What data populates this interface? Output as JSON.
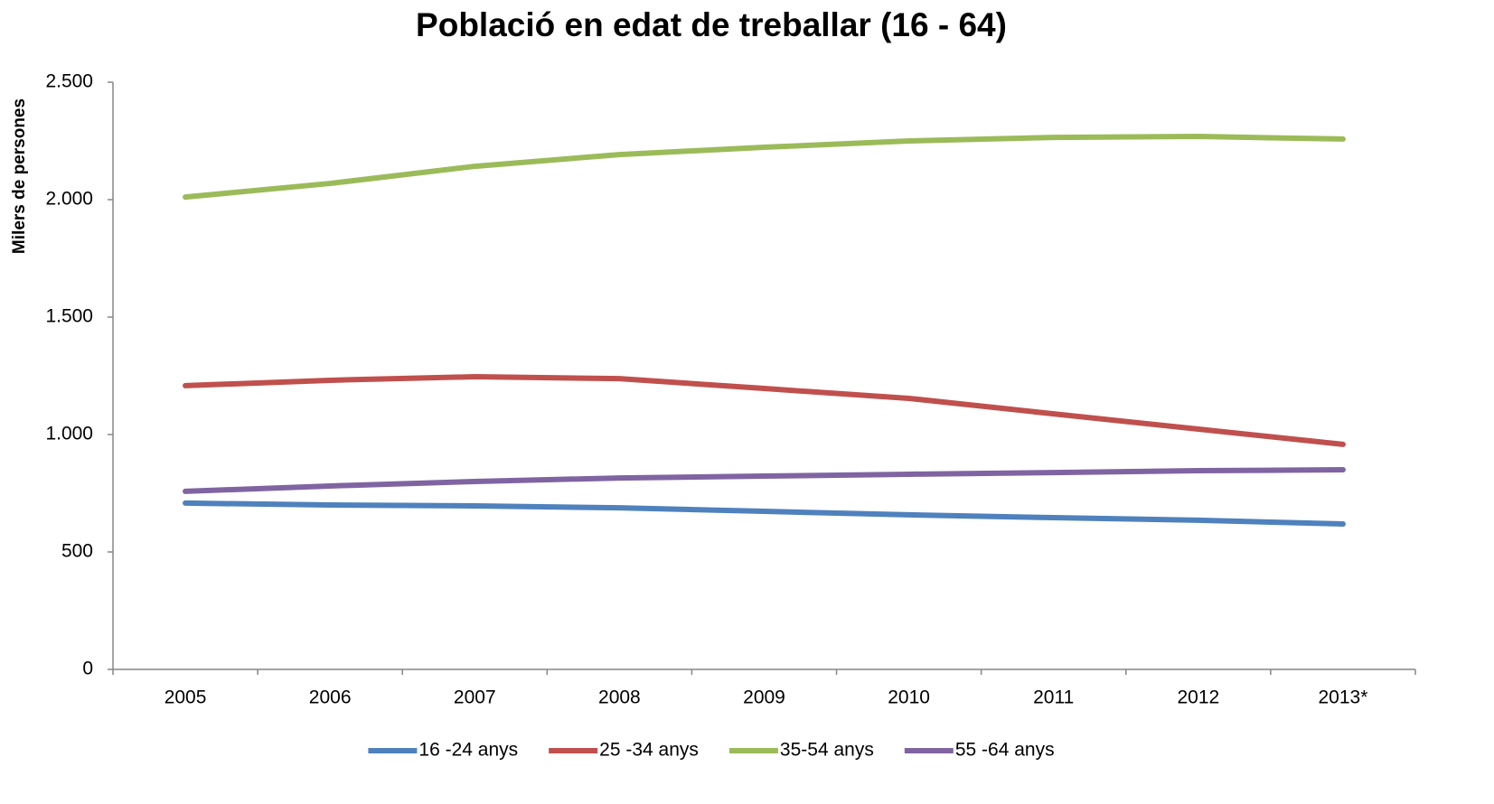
{
  "chart_data": {
    "type": "line",
    "title": "Població en edat de treballar (16 - 64)",
    "y_label": "Milers de persones",
    "categories": [
      "2005",
      "2006",
      "2007",
      "2008",
      "2009",
      "2010",
      "2011",
      "2012",
      "2013*"
    ],
    "series": [
      {
        "name": "16 -24 anys",
        "color": "#4f81bd",
        "values": [
          708,
          700,
          696,
          688,
          673,
          658,
          646,
          635,
          619
        ]
      },
      {
        "name": "25 -34 anys",
        "color": "#c0504d",
        "values": [
          1208,
          1231,
          1246,
          1238,
          1196,
          1154,
          1088,
          1023,
          958
        ]
      },
      {
        "name": "35-54 anys",
        "color": "#9bbb59",
        "values": [
          2011,
          2069,
          2142,
          2192,
          2223,
          2250,
          2265,
          2269,
          2258
        ]
      },
      {
        "name": "55 -64 anys",
        "color": "#8064a2",
        "values": [
          758,
          781,
          800,
          815,
          823,
          831,
          838,
          846,
          850
        ]
      }
    ],
    "ylim": [
      0,
      2500
    ],
    "yticks": [
      0,
      500,
      {
        "value": 1000,
        "label": "1.000"
      },
      {
        "value": 1500,
        "label": "1.500"
      },
      {
        "value": 2000,
        "label": "2.000"
      },
      {
        "value": 2500,
        "label": "2.500"
      }
    ],
    "grid": false,
    "legend": "bottom"
  }
}
